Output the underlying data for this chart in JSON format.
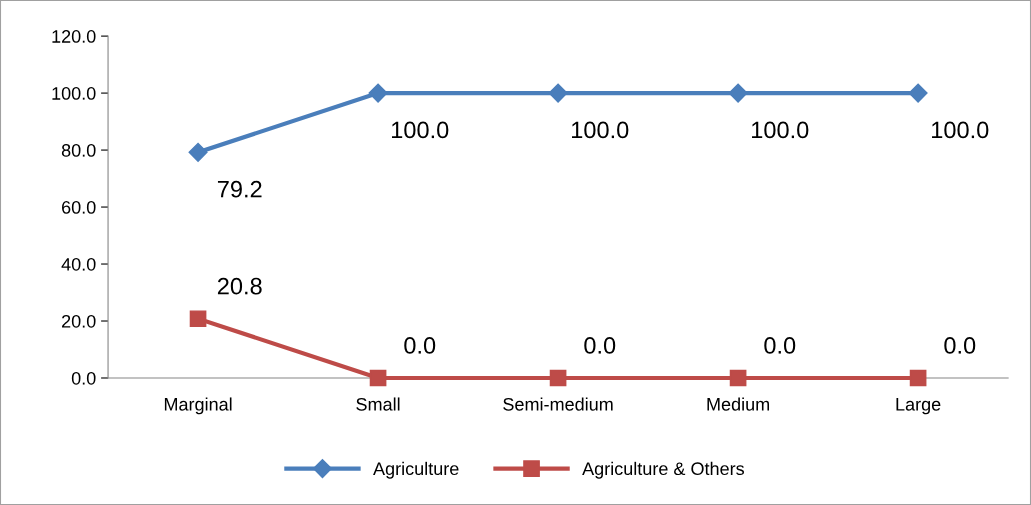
{
  "chart_data": {
    "type": "line",
    "categories": [
      "Marginal",
      "Small",
      "Semi-medium",
      "Medium",
      "Large"
    ],
    "series": [
      {
        "name": "Agriculture",
        "color": "#4a7ebb",
        "marker": "diamond",
        "values": [
          79.2,
          100.0,
          100.0,
          100.0,
          100.0
        ],
        "value_labels": [
          "79.2",
          "100.0",
          "100.0",
          "100.0",
          "100.0"
        ]
      },
      {
        "name": "Agriculture & Others",
        "color": "#be4b48",
        "marker": "square",
        "values": [
          20.8,
          0.0,
          0.0,
          0.0,
          0.0
        ],
        "value_labels": [
          "20.8",
          "0.0",
          "0.0",
          "0.0",
          "0.0"
        ]
      }
    ],
    "ylim": [
      0,
      120
    ],
    "yticks": [
      {
        "value": 0,
        "label": "0.0"
      },
      {
        "value": 20,
        "label": "20.0"
      },
      {
        "value": 40,
        "label": "40.0"
      },
      {
        "value": 60,
        "label": "60.0"
      },
      {
        "value": 80,
        "label": "80.0"
      },
      {
        "value": 100,
        "label": "100.0"
      },
      {
        "value": 120,
        "label": "120.0"
      }
    ],
    "grid": false,
    "legend": "bottom",
    "line_style": "solid"
  }
}
